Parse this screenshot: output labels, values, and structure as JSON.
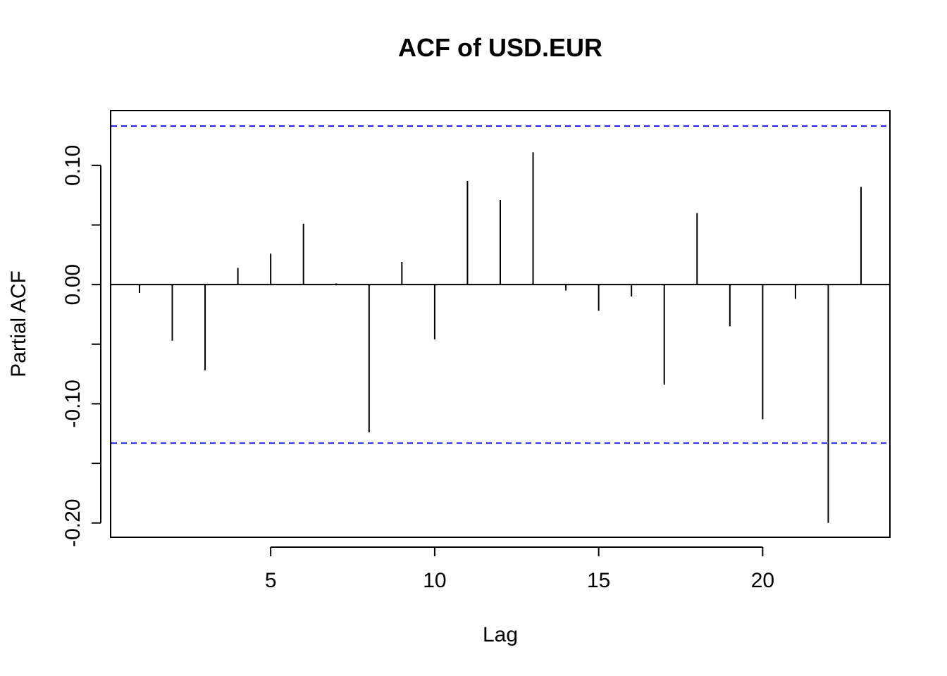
{
  "chart_data": {
    "type": "bar",
    "title": "ACF of USD.EUR",
    "xlabel": "Lag",
    "ylabel": "Partial ACF",
    "x": [
      1,
      2,
      3,
      4,
      5,
      6,
      7,
      8,
      9,
      10,
      11,
      12,
      13,
      14,
      15,
      16,
      17,
      18,
      19,
      20,
      21,
      22,
      23
    ],
    "values": [
      -0.007,
      -0.047,
      -0.072,
      0.014,
      0.026,
      0.051,
      0.001,
      -0.124,
      0.019,
      -0.046,
      0.087,
      0.071,
      0.111,
      -0.005,
      -0.022,
      -0.01,
      -0.084,
      0.06,
      -0.035,
      -0.113,
      -0.012,
      -0.2,
      0.082
    ],
    "xlim": [
      0.12,
      23.88
    ],
    "ylim": [
      -0.212,
      0.146
    ],
    "xticks": [
      5,
      10,
      15,
      20
    ],
    "xtick_labels": [
      "5",
      "10",
      "15",
      "20"
    ],
    "yticks": [
      -0.2,
      -0.15,
      -0.1,
      -0.05,
      0.0,
      0.05,
      0.1
    ],
    "ytick_labels": [
      "-0.20",
      "",
      "-0.10",
      "",
      "0.00",
      "",
      "0.10"
    ],
    "confidence_bounds": [
      0.133,
      -0.133
    ],
    "grid": false,
    "colors": {
      "bars": "#000000",
      "confidence_lines": "#0000ff",
      "zero_line": "#000000",
      "frame": "#000000"
    }
  }
}
